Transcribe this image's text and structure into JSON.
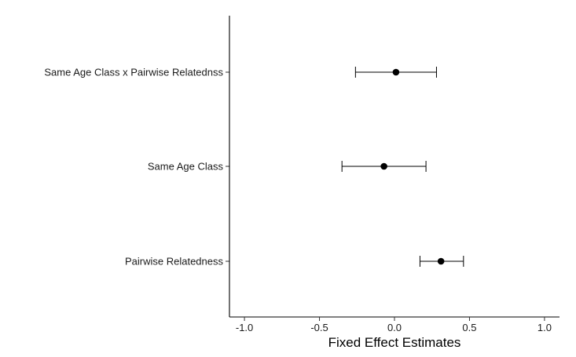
{
  "chart_data": {
    "type": "scatter",
    "subtype": "coefficient-plot-with-error-bars",
    "title": "",
    "xlabel": "Fixed Effect Estimates",
    "ylabel": "",
    "xlim": [
      -1.1,
      1.1
    ],
    "x_ticks": [
      -1.0,
      -0.5,
      0.0,
      0.5,
      1.0
    ],
    "x_tick_labels": [
      "-1.0",
      "-0.5",
      "0.0",
      "0.5",
      "1.0"
    ],
    "grid": false,
    "legend": "none",
    "colors": {
      "point": "#000000",
      "axis": "#000000"
    },
    "terms": [
      {
        "label": "Same Age Class x Pairwise Relatednss",
        "estimate": 0.01,
        "lower": -0.26,
        "upper": 0.28
      },
      {
        "label": "Same Age Class",
        "estimate": -0.07,
        "lower": -0.35,
        "upper": 0.21
      },
      {
        "label": "Pairwise Relatedness",
        "estimate": 0.31,
        "lower": 0.17,
        "upper": 0.46
      }
    ]
  }
}
